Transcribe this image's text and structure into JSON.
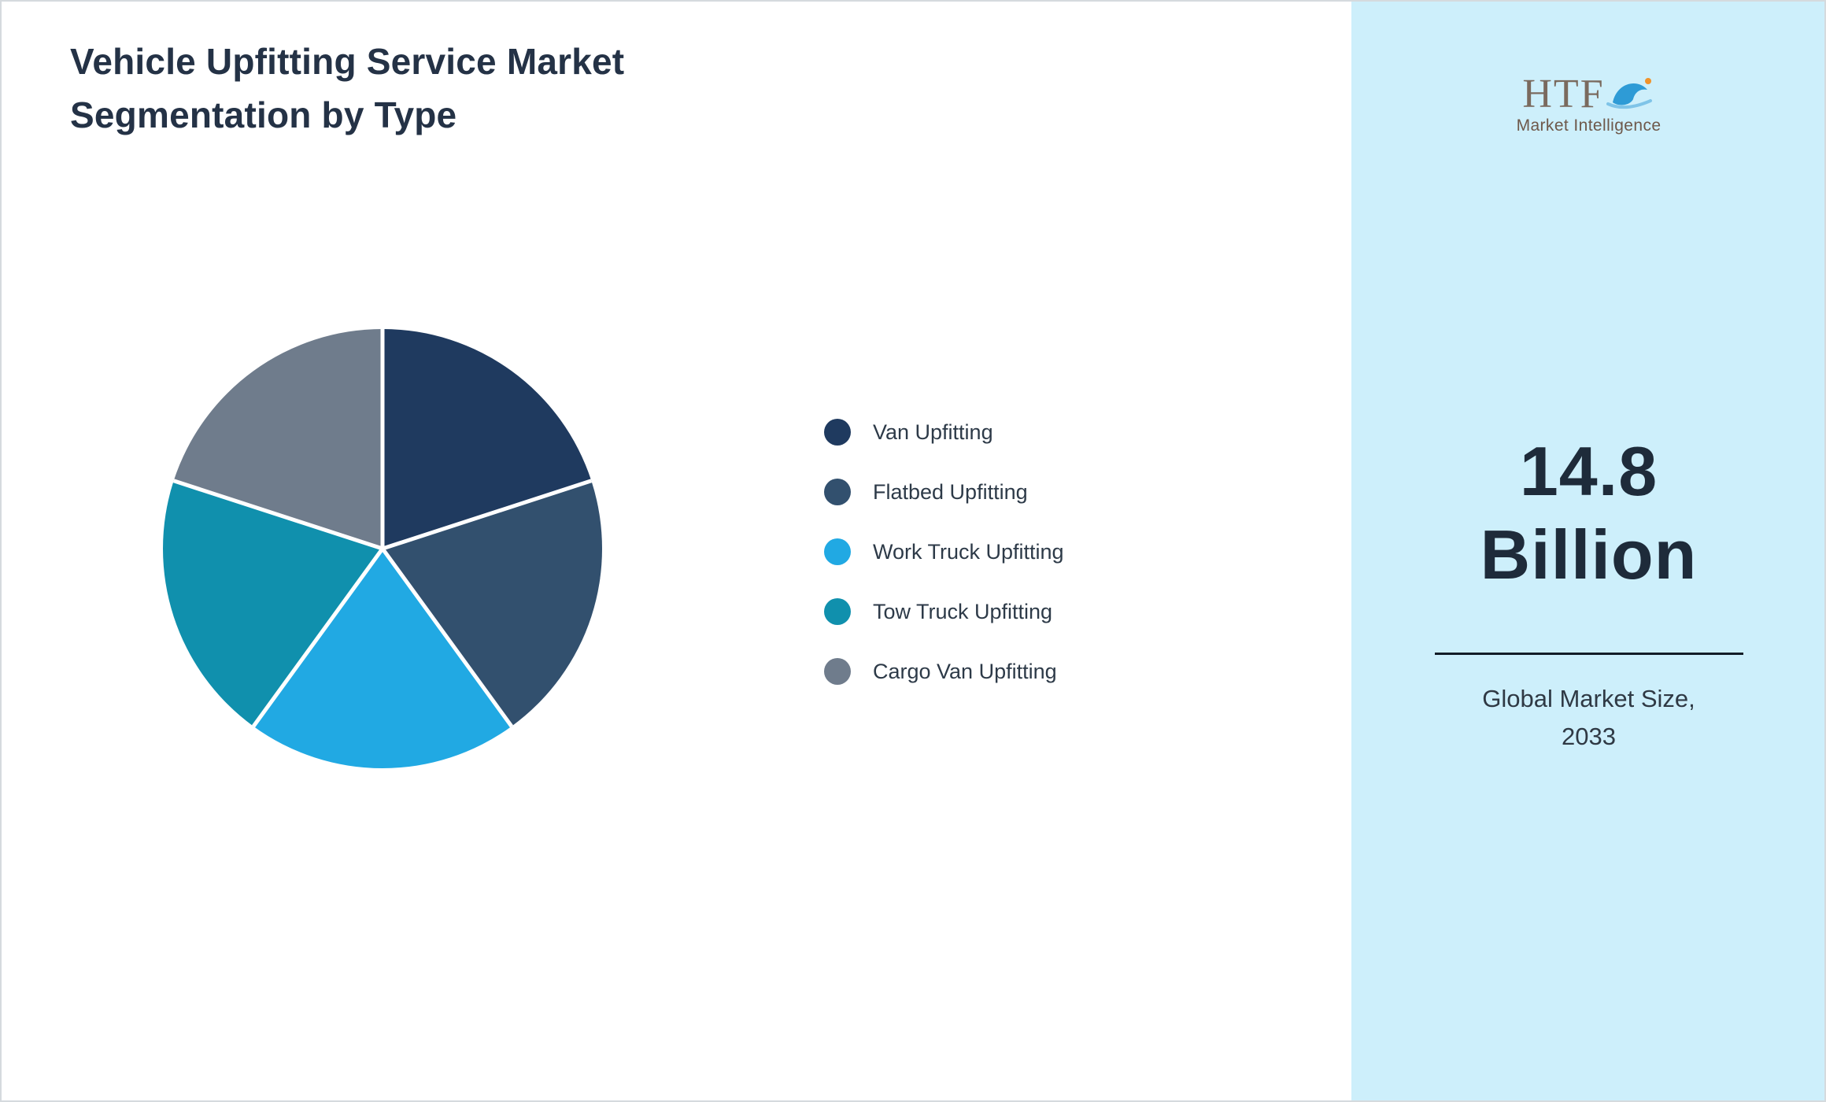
{
  "title": {
    "line1": "Vehicle Upfitting Service Market",
    "line2": "Segmentation by Type"
  },
  "chart_data": {
    "type": "pie",
    "title": "Vehicle Upfitting Service Market Segmentation by Type",
    "labels": [
      "Van Upfitting",
      "Flatbed Upfitting",
      "Work Truck Upfitting",
      "Tow Truck Upfitting",
      "Cargo Van Upfitting"
    ],
    "values": [
      20,
      20,
      20,
      20,
      20
    ],
    "unit": "percent",
    "colors": [
      "#1f3a5f",
      "#32506e",
      "#21a9e3",
      "#1090ad",
      "#6f7c8c"
    ],
    "start_angle_deg": 0,
    "direction": "clockwise",
    "legend_position": "right",
    "slice_separator_color": "#ffffff"
  },
  "right_panel": {
    "background": "#cdeffb",
    "logo": {
      "text": "HTF",
      "subtext": "Market Intelligence",
      "dolphin_color": "#2e9bd6",
      "splash_color": "#7fc4e8",
      "accent_color": "#f0932b"
    },
    "market_size_value": "14.8",
    "market_size_unit": "Billion",
    "caption_line1": "Global Market Size,",
    "caption_line2": "2033"
  }
}
